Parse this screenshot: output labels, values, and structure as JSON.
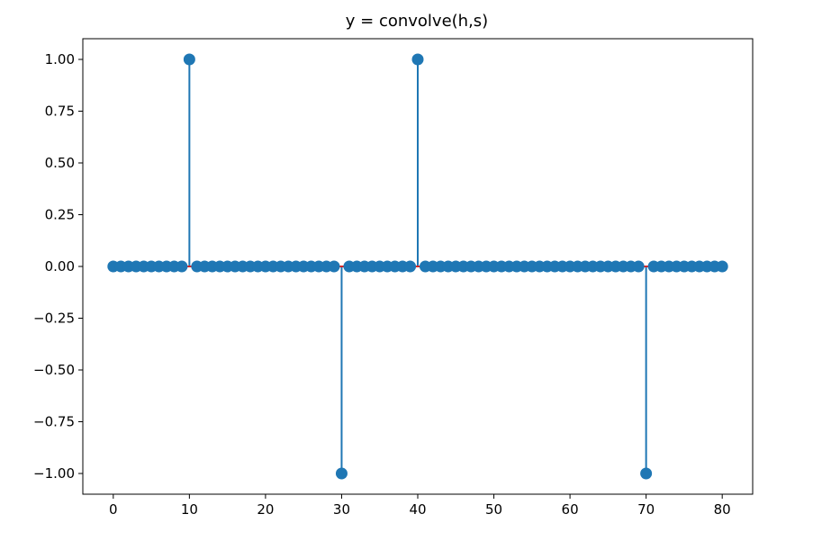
{
  "chart_data": {
    "type": "stem",
    "title": "y = convolve(h,s)",
    "xlabel": "",
    "ylabel": "",
    "xlim": [
      -4,
      84
    ],
    "ylim": [
      -1.1,
      1.1
    ],
    "x_ticks": [
      0,
      10,
      20,
      30,
      40,
      50,
      60,
      70,
      80
    ],
    "x_tick_labels": [
      "0",
      "10",
      "20",
      "30",
      "40",
      "50",
      "60",
      "70",
      "80"
    ],
    "y_ticks": [
      1.0,
      0.75,
      0.5,
      0.25,
      0.0,
      -0.25,
      -0.5,
      -0.75,
      -1.0
    ],
    "y_tick_labels": [
      "1.00",
      "0.75",
      "0.50",
      "0.25",
      "0.00",
      "−0.25",
      "−0.50",
      "−0.75",
      "−1.00"
    ],
    "grid": false,
    "x": [
      0,
      1,
      2,
      3,
      4,
      5,
      6,
      7,
      8,
      9,
      10,
      11,
      12,
      13,
      14,
      15,
      16,
      17,
      18,
      19,
      20,
      21,
      22,
      23,
      24,
      25,
      26,
      27,
      28,
      29,
      30,
      31,
      32,
      33,
      34,
      35,
      36,
      37,
      38,
      39,
      40,
      41,
      42,
      43,
      44,
      45,
      46,
      47,
      48,
      49,
      50,
      51,
      52,
      53,
      54,
      55,
      56,
      57,
      58,
      59,
      60,
      61,
      62,
      63,
      64,
      65,
      66,
      67,
      68,
      69,
      70,
      71,
      72,
      73,
      74,
      75,
      76,
      77,
      78,
      79,
      80
    ],
    "values": [
      0,
      0,
      0,
      0,
      0,
      0,
      0,
      0,
      0,
      0,
      1,
      0,
      0,
      0,
      0,
      0,
      0,
      0,
      0,
      0,
      0,
      0,
      0,
      0,
      0,
      0,
      0,
      0,
      0,
      0,
      -1,
      0,
      0,
      0,
      0,
      0,
      0,
      0,
      0,
      0,
      1,
      0,
      0,
      0,
      0,
      0,
      0,
      0,
      0,
      0,
      0,
      0,
      0,
      0,
      0,
      0,
      0,
      0,
      0,
      0,
      0,
      0,
      0,
      0,
      0,
      0,
      0,
      0,
      0,
      0,
      -1,
      0,
      0,
      0,
      0,
      0,
      0,
      0,
      0,
      0,
      0
    ],
    "colors": {
      "stem": "#1f77b4",
      "marker": "#1f77b4",
      "baseline": "#d62728",
      "axes": "#000000"
    }
  }
}
